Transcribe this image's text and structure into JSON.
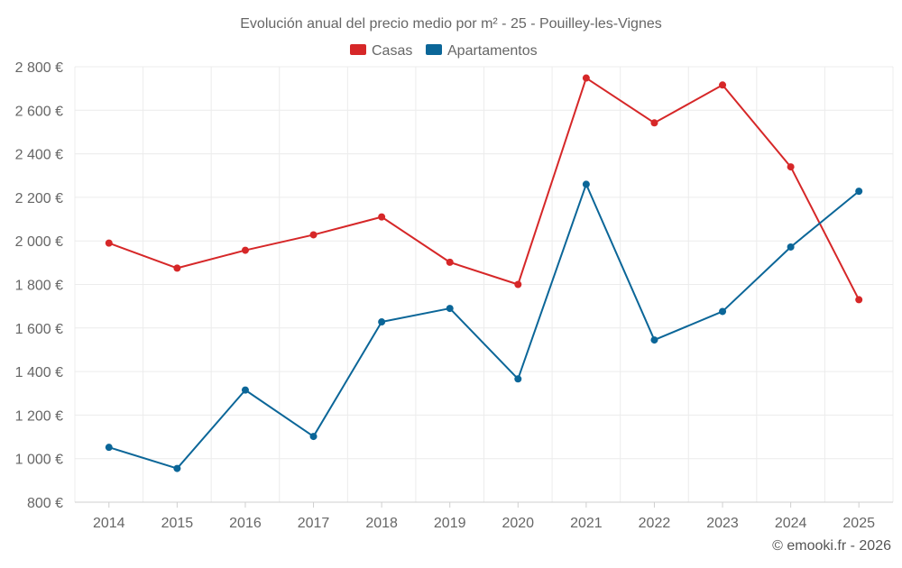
{
  "chart_data": {
    "type": "line",
    "title": "Evolución anual del precio medio por m² - 25 - Pouilley-les-Vignes",
    "xlabel": "",
    "ylabel": "",
    "categories": [
      "2014",
      "2015",
      "2016",
      "2017",
      "2018",
      "2019",
      "2020",
      "2021",
      "2022",
      "2023",
      "2024",
      "2025"
    ],
    "ylim": [
      800,
      2800
    ],
    "yticks": [
      800,
      1000,
      1200,
      1400,
      1600,
      1800,
      2000,
      2200,
      2400,
      2600,
      2800
    ],
    "ytick_labels": [
      "800 €",
      "1 000 €",
      "1 200 €",
      "1 400 €",
      "1 600 €",
      "1 800 €",
      "2 000 €",
      "2 200 €",
      "2 400 €",
      "2 600 €",
      "2 800 €"
    ],
    "grid": true,
    "legend_position": "top-center",
    "series": [
      {
        "name": "Casas",
        "color": "#d62728",
        "values": [
          1990,
          1875,
          1957,
          2028,
          2110,
          1902,
          1800,
          2748,
          2542,
          2716,
          2340,
          1730
        ]
      },
      {
        "name": "Apartamentos",
        "color": "#0b6698",
        "values": [
          1052,
          955,
          1315,
          1102,
          1628,
          1690,
          1366,
          2260,
          1545,
          1676,
          1972,
          2228
        ]
      }
    ]
  },
  "credit": "© emooki.fr - 2026"
}
